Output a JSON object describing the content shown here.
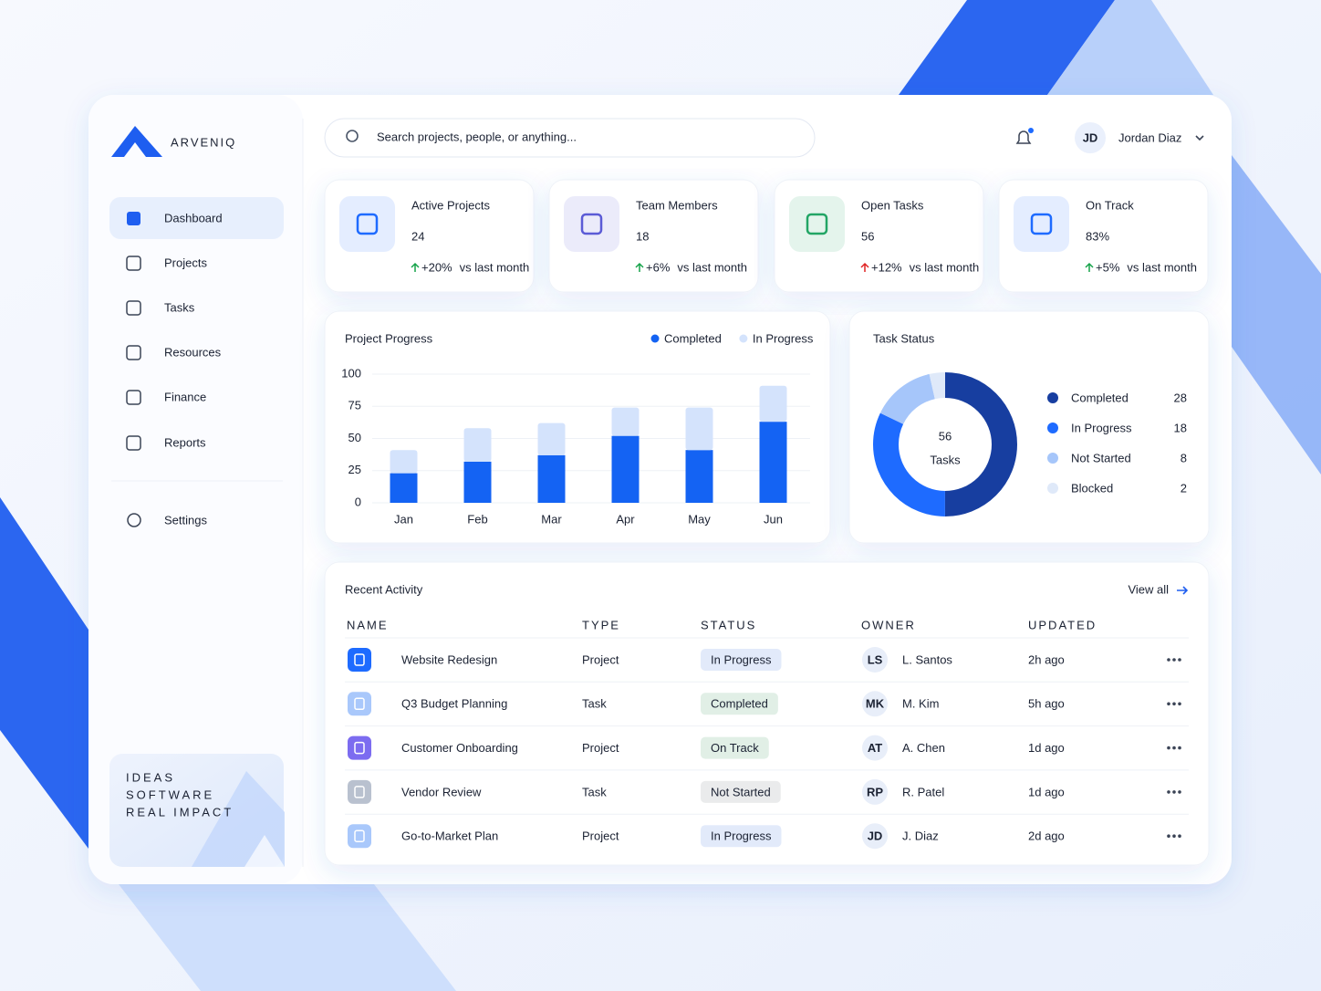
{
  "brand": "ARVENIQ",
  "search_placeholder": "Search projects, people, or anything...",
  "user": {
    "initials": "JD",
    "name": "Jordan Diaz"
  },
  "nav": [
    "Dashboard",
    "Projects",
    "Tasks",
    "Resources",
    "Finance",
    "Reports"
  ],
  "settings": "Settings",
  "promo": [
    "IDEAS",
    "SOFTWARE",
    "REAL IMPACT"
  ],
  "kpis": [
    {
      "label": "Active Projects",
      "value": "24",
      "change": "+20%",
      "change_color": "#16a34a",
      "note": "vs last month",
      "color": "#1e6bff"
    },
    {
      "label": "Team Members",
      "value": "18",
      "change": "+6%",
      "change_color": "#16a34a",
      "note": "vs last month",
      "color": "#5b5bd6"
    },
    {
      "label": "Open Tasks",
      "value": "56",
      "change": "+12%",
      "change_color": "#e02424",
      "note": "vs last month",
      "color": "#22a565"
    },
    {
      "label": "On Track",
      "value": "83%",
      "change": "+5%",
      "change_color": "#16a34a",
      "note": "vs last month",
      "color": "#1e6bff"
    }
  ],
  "chart_data": [
    {
      "type": "bar",
      "stacked": true,
      "title": "Project Progress",
      "categories": [
        "Jan",
        "Feb",
        "Mar",
        "Apr",
        "May",
        "Jun"
      ],
      "series": [
        {
          "name": "Completed",
          "color": "#1463f3",
          "values": [
            23,
            32,
            37,
            52,
            41,
            63
          ]
        },
        {
          "name": "In Progress",
          "color": "#d4e3fc",
          "values": [
            18,
            26,
            25,
            22,
            33,
            28
          ]
        }
      ],
      "ylim": [
        0,
        100
      ],
      "yticks": [
        0,
        25,
        50,
        75,
        100
      ],
      "grid": true
    },
    {
      "type": "pie",
      "donut": true,
      "title": "Task Status",
      "center_value": "56",
      "center_label": "Tasks",
      "categories": [
        "Completed",
        "In Progress",
        "Not Started",
        "Blocked"
      ],
      "values": [
        28,
        18,
        8,
        2
      ],
      "colors": [
        "#173ea0",
        "#1e6bff",
        "#a6c6fa",
        "#dfe9f9"
      ]
    }
  ],
  "activity": {
    "title": "Recent Activity",
    "view_all": "View all",
    "columns": [
      "NAME",
      "TYPE",
      "STATUS",
      "OWNER",
      "UPDATED"
    ],
    "rows": [
      {
        "name": "Website Redesign",
        "type": "Project",
        "status": "In Progress",
        "status_color": "#1d5bd8",
        "icon_color": "#1e6bff",
        "initials": "LS",
        "owner": "L. Santos",
        "updated": "2h ago"
      },
      {
        "name": "Q3 Budget Planning",
        "type": "Task",
        "status": "Completed",
        "status_color": "#15803d",
        "icon_color": "#a9c8fb",
        "initials": "MK",
        "owner": "M. Kim",
        "updated": "5h ago"
      },
      {
        "name": "Customer Onboarding",
        "type": "Project",
        "status": "On Track",
        "status_color": "#15803d",
        "icon_color": "#7c6cf0",
        "initials": "AT",
        "owner": "A. Chen",
        "updated": "1d ago"
      },
      {
        "name": "Vendor Review",
        "type": "Task",
        "status": "Not Started",
        "status_color": "#5b6170",
        "icon_color": "#b9c1cf",
        "initials": "RP",
        "owner": "R. Patel",
        "updated": "1d ago"
      },
      {
        "name": "Go-to-Market Plan",
        "type": "Project",
        "status": "In Progress",
        "status_color": "#1d5bd8",
        "icon_color": "#a9c8fb",
        "initials": "JD",
        "owner": "J. Diaz",
        "updated": "2d ago"
      }
    ]
  }
}
